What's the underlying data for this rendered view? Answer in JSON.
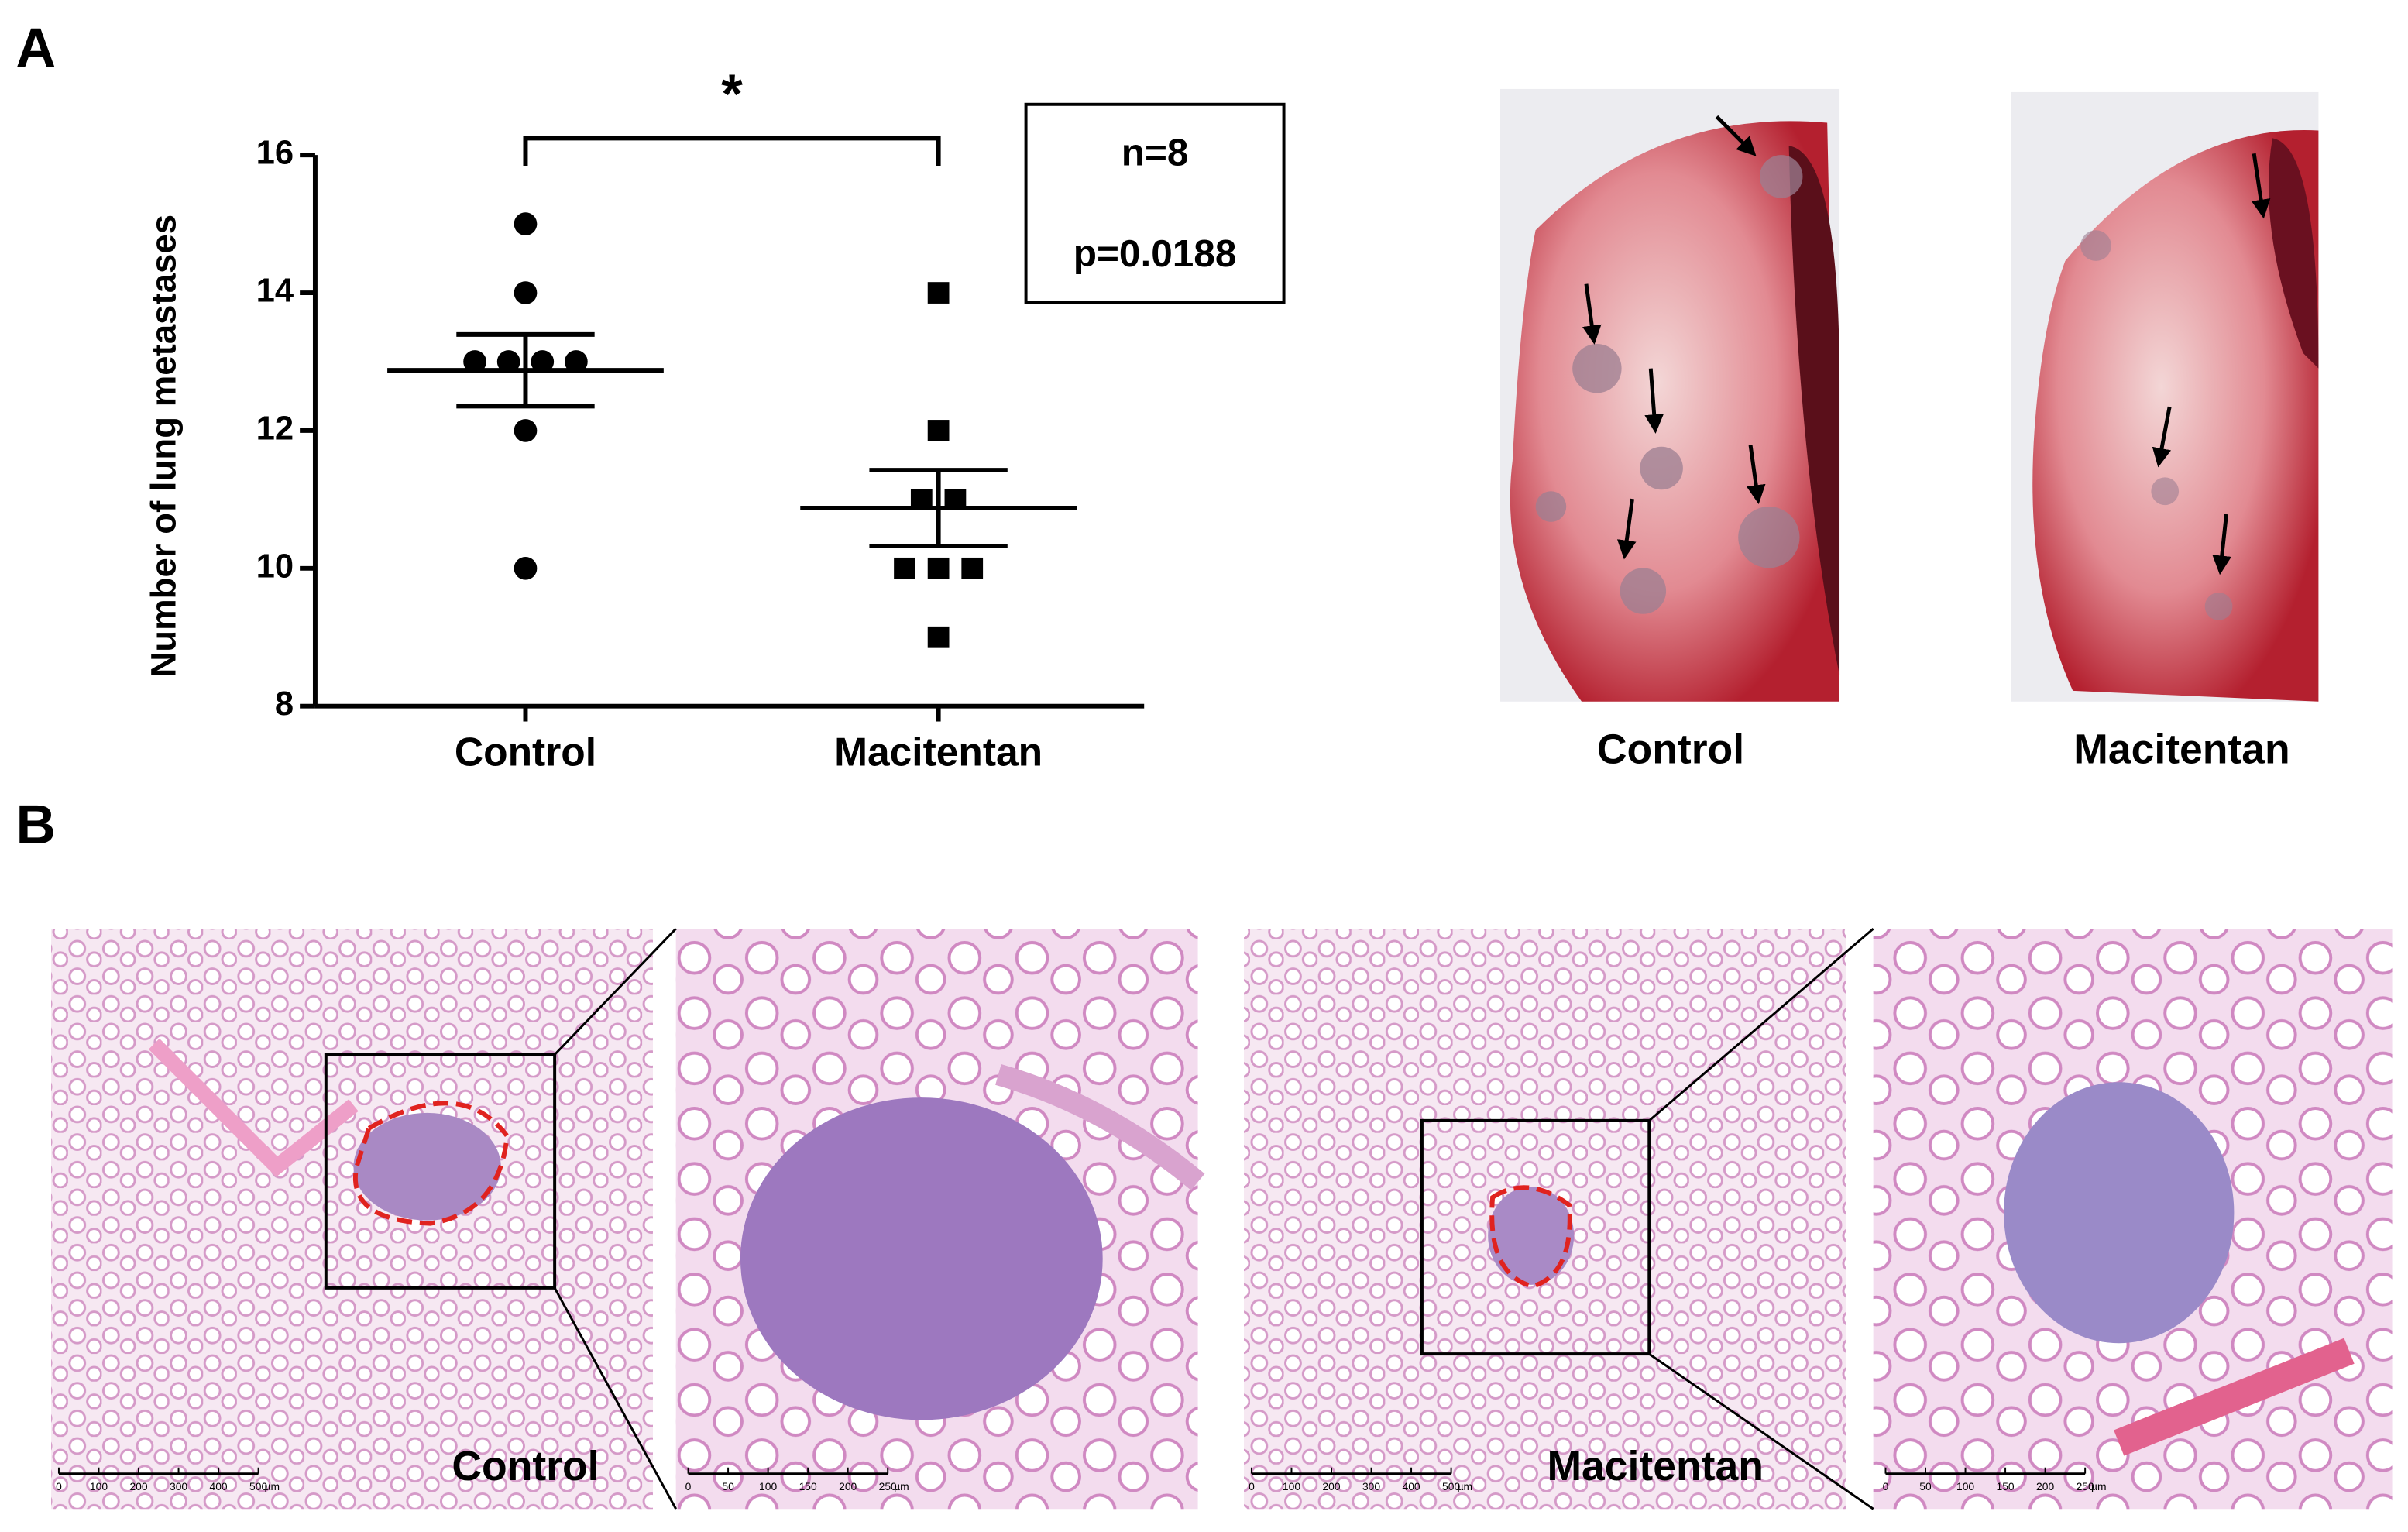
{
  "panel_labels": [
    "A",
    "B"
  ],
  "chart_data": {
    "type": "dot",
    "ylabel": "Number of lung metastases",
    "categories": [
      "Control",
      "Macitentan"
    ],
    "markers": [
      "circle",
      "square"
    ],
    "color": "#000000",
    "values": [
      [
        15,
        14,
        13,
        13,
        13,
        13,
        12,
        10
      ],
      [
        14,
        12,
        11,
        11,
        10,
        10,
        10,
        9
      ]
    ],
    "mean": [
      12.875,
      10.875
    ],
    "sem": [
      0.52,
      0.55
    ],
    "ylim": [
      8,
      16
    ],
    "yticks": [
      8,
      10,
      12,
      14,
      16
    ],
    "significance": "*",
    "stats_box": [
      "n=8",
      "p=0.0188"
    ]
  },
  "photos": {
    "captions": [
      "Control",
      "Macitentan"
    ]
  },
  "histology": {
    "labels": [
      "Control",
      "Macitentan"
    ],
    "scale_bars": [
      {
        "ticks": [
          "0",
          "100",
          "200",
          "300",
          "400",
          "500"
        ],
        "unit": "µm"
      },
      {
        "ticks": [
          "0",
          "50",
          "100",
          "150",
          "200",
          "250"
        ],
        "unit": "µm"
      },
      {
        "ticks": [
          "0",
          "100",
          "200",
          "300",
          "400",
          "500"
        ],
        "unit": "µm"
      },
      {
        "ticks": [
          "0",
          "50",
          "100",
          "150",
          "200",
          "250"
        ],
        "unit": "µm"
      }
    ]
  }
}
